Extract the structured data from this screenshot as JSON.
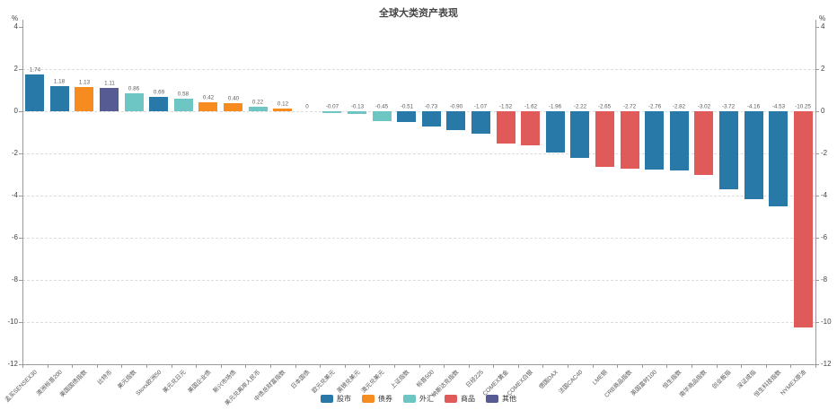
{
  "title": "全球大类资产表现",
  "colors": {
    "stock": "#2878A8",
    "bond": "#F68B1F",
    "fx": "#6EC6C4",
    "commodity": "#E05A5A",
    "other": "#575B94"
  },
  "legend": [
    {
      "label": "股市",
      "type": "stock"
    },
    {
      "label": "债券",
      "type": "bond"
    },
    {
      "label": "外汇",
      "type": "fx"
    },
    {
      "label": "商品",
      "type": "commodity"
    },
    {
      "label": "其他",
      "type": "other"
    }
  ],
  "axis": {
    "unit": "%",
    "y_ticks": [
      4,
      2,
      0,
      -2,
      -4,
      -6,
      -8,
      -10,
      -12
    ]
  },
  "chart_data": {
    "type": "bar",
    "title": "全球大类资产表现",
    "xlabel": "",
    "ylabel": "%",
    "ylim": [
      -12,
      4
    ],
    "grid": "dashed-horizontal",
    "legend_position": "bottom-center",
    "categories": [
      "孟买SENSEX30",
      "澳洲标普200",
      "美国国债指数",
      "比特币",
      "美元指数",
      "Stoxx欧洲50",
      "美元兑日元",
      "美国企业债",
      "新兴市场债",
      "美元兑离岸人民币",
      "中债总财富指数",
      "日本国债",
      "欧元兑美元",
      "英镑兑美元",
      "澳元兑美元",
      "上证指数",
      "标普500",
      "纳斯达克指数",
      "日经225",
      "COMEX黄金",
      "COMEX白银",
      "德国DAX",
      "法国CAC40",
      "LME铜",
      "CRB商品指数",
      "英国富时100",
      "恒生指数",
      "南华商品指数",
      "创业板指",
      "深证成指",
      "恒生科技指数",
      "NYMEX原油"
    ],
    "values": [
      1.74,
      1.18,
      1.13,
      1.11,
      0.86,
      0.69,
      0.58,
      0.42,
      0.4,
      0.22,
      0.12,
      0,
      -0.07,
      -0.13,
      -0.45,
      -0.51,
      -0.73,
      -0.9,
      -1.07,
      -1.52,
      -1.62,
      -1.96,
      -2.22,
      -2.65,
      -2.72,
      -2.76,
      -2.82,
      -3.02,
      -3.72,
      -4.16,
      -4.53,
      -10.25
    ],
    "value_labels": [
      "1.74",
      "1.18",
      "1.13",
      "1.11",
      "0.86",
      "0.69",
      "0.58",
      "0.42",
      "0.40",
      "0.22",
      "0.12",
      "0",
      "-0.07",
      "-0.13",
      "-0.45",
      "-0.51",
      "-0.73",
      "-0.90",
      "-1.07",
      "-1.52",
      "-1.62",
      "-1.96",
      "-2.22",
      "-2.65",
      "-2.72",
      "-2.76",
      "-2.82",
      "-3.02",
      "-3.72",
      "-4.16",
      "-4.53",
      "-10.25"
    ],
    "bar_types": [
      "stock",
      "stock",
      "bond",
      "other",
      "fx",
      "stock",
      "fx",
      "bond",
      "bond",
      "fx",
      "bond",
      "bond",
      "fx",
      "fx",
      "fx",
      "stock",
      "stock",
      "stock",
      "stock",
      "commodity",
      "commodity",
      "stock",
      "stock",
      "commodity",
      "commodity",
      "stock",
      "stock",
      "commodity",
      "stock",
      "stock",
      "stock",
      "commodity"
    ]
  }
}
